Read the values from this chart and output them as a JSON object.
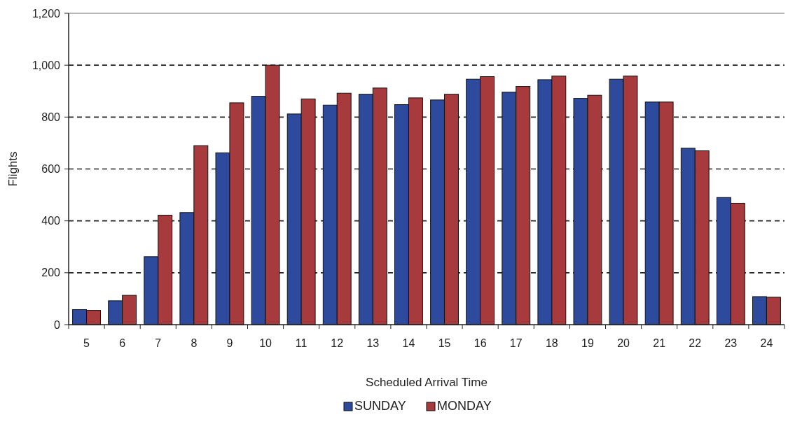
{
  "chart_data": {
    "type": "bar",
    "xlabel": "Scheduled Arrival Time",
    "ylabel": "Flights",
    "categories": [
      "5",
      "6",
      "7",
      "8",
      "9",
      "10",
      "11",
      "12",
      "13",
      "14",
      "15",
      "16",
      "17",
      "18",
      "19",
      "20",
      "21",
      "22",
      "23",
      "24"
    ],
    "series": [
      {
        "name": "SUNDAY",
        "color": "#2d4a9c",
        "values": [
          58,
          92,
          262,
          432,
          662,
          880,
          812,
          846,
          888,
          848,
          866,
          946,
          896,
          944,
          872,
          946,
          858,
          680,
          490,
          108
        ]
      },
      {
        "name": "MONDAY",
        "color": "#a63a3c",
        "values": [
          55,
          113,
          422,
          690,
          855,
          1000,
          870,
          892,
          912,
          874,
          888,
          956,
          918,
          958,
          884,
          958,
          858,
          670,
          468,
          106
        ]
      }
    ],
    "ylim": [
      0,
      1200
    ],
    "yticks": [
      0,
      {
        "value": 200,
        "label": "200"
      },
      {
        "value": 400,
        "label": "400"
      },
      {
        "value": 600,
        "label": "600"
      },
      {
        "value": 800,
        "label": "800"
      },
      {
        "value": 1000,
        "label": "1,000"
      },
      {
        "value": 1200,
        "label": "1,200"
      }
    ],
    "grid": "y",
    "legend": "bottom"
  }
}
